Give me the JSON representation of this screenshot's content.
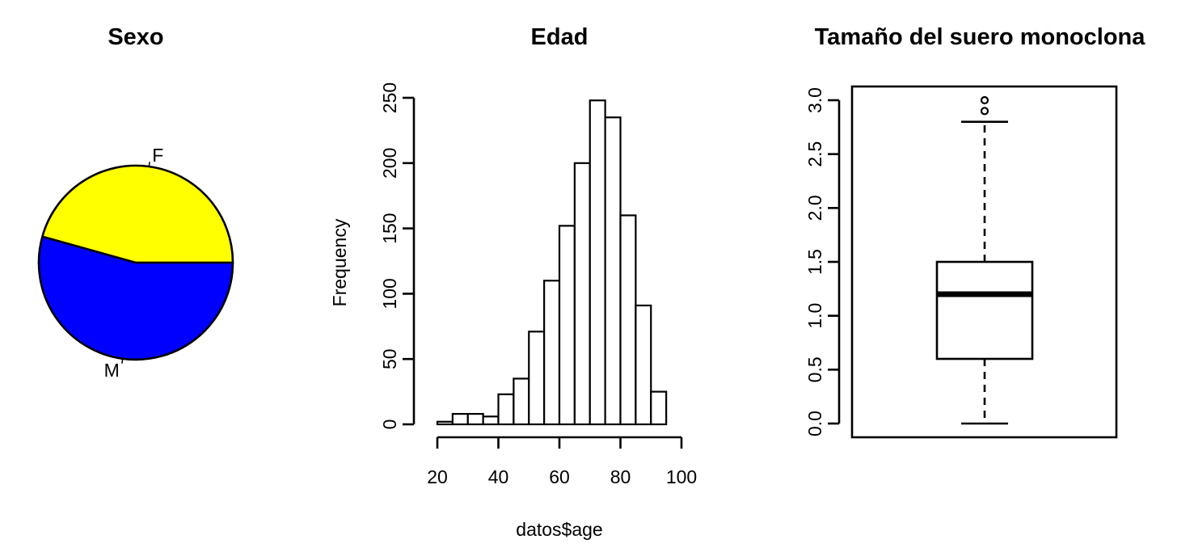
{
  "chart_data": [
    {
      "type": "pie",
      "title": "Sexo",
      "labels": [
        "F",
        "M"
      ],
      "values": [
        632,
        752
      ],
      "colors": [
        "#ffff00",
        "#0000ff"
      ]
    },
    {
      "type": "bar",
      "subtype": "histogram",
      "title": "Edad",
      "xlabel": "datos$age",
      "ylabel": "Frequency",
      "bins": [
        [
          20,
          25
        ],
        [
          25,
          30
        ],
        [
          30,
          35
        ],
        [
          35,
          40
        ],
        [
          40,
          45
        ],
        [
          45,
          50
        ],
        [
          50,
          55
        ],
        [
          55,
          60
        ],
        [
          60,
          65
        ],
        [
          65,
          70
        ],
        [
          70,
          75
        ],
        [
          75,
          80
        ],
        [
          80,
          85
        ],
        [
          85,
          90
        ],
        [
          90,
          95
        ]
      ],
      "values": [
        2,
        8,
        8,
        6,
        23,
        35,
        71,
        110,
        152,
        200,
        248,
        235,
        160,
        91,
        25
      ],
      "xlim": [
        20,
        100
      ],
      "ylim": [
        0,
        250
      ],
      "xticks": [
        20,
        40,
        60,
        80,
        100
      ],
      "yticks": [
        0,
        50,
        100,
        150,
        200,
        250
      ]
    },
    {
      "type": "boxplot",
      "title": "Tamaño del suero monoclona",
      "stats": {
        "min": 0.0,
        "q1": 0.6,
        "median": 1.2,
        "q3": 1.5,
        "max": 2.8
      },
      "outliers": [
        2.9,
        3.0
      ],
      "ylim": [
        0,
        3
      ],
      "yticks": [
        "0.0",
        "0.5",
        "1.0",
        "1.5",
        "2.0",
        "2.5",
        "3.0"
      ]
    }
  ]
}
